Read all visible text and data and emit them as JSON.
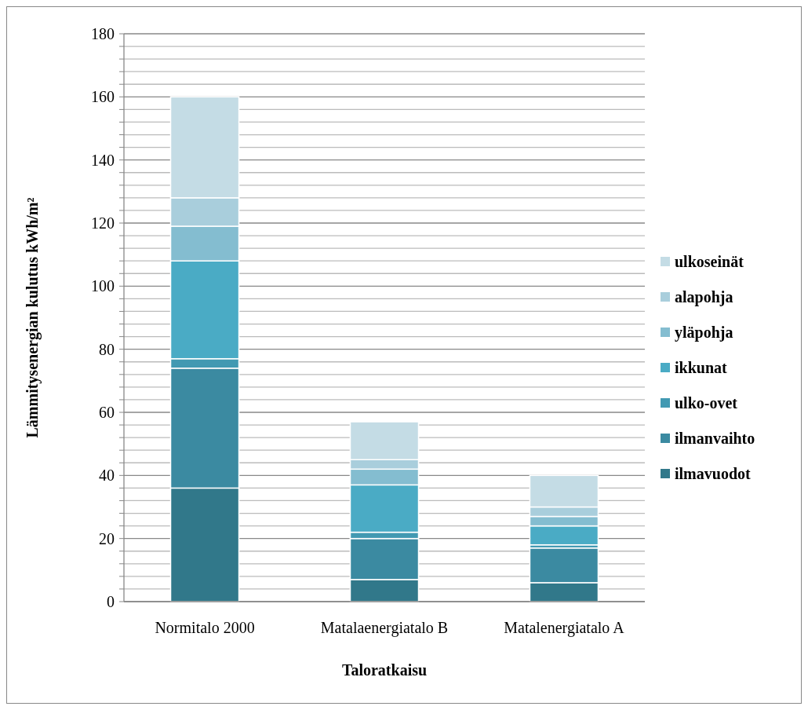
{
  "chart_data": {
    "type": "bar",
    "stacked": true,
    "xlabel": "Taloratkaisu",
    "ylabel": "Lämmitysenergian kulutus kWh/m²",
    "categories": [
      "Normitalo 2000",
      "Matalaenergiatalo B",
      "Matalenergiatalo A"
    ],
    "series": [
      {
        "name": "ilmavuodot",
        "color": "#31788a",
        "values": [
          36,
          7,
          6
        ]
      },
      {
        "name": "ilmanvaihto",
        "color": "#3b8aa1",
        "values": [
          38,
          13,
          11
        ]
      },
      {
        "name": "ulko-ovet",
        "color": "#4299b2",
        "values": [
          3,
          2,
          1
        ]
      },
      {
        "name": "ikkunat",
        "color": "#4aabc5",
        "values": [
          31,
          15,
          6
        ]
      },
      {
        "name": "yläpohja",
        "color": "#84bdd0",
        "values": [
          11,
          5,
          3
        ]
      },
      {
        "name": "alapohja",
        "color": "#a9cedc",
        "values": [
          9,
          3,
          3
        ]
      },
      {
        "name": "ulkoseinät",
        "color": "#c4dce5",
        "values": [
          32,
          12,
          10
        ]
      }
    ],
    "ylim": [
      0,
      180
    ],
    "yticks": [
      0,
      {
        "value": 4,
        "label": null
      },
      {
        "value": 8,
        "label": null
      },
      {
        "value": 12,
        "label": null
      },
      {
        "value": 16,
        "label": null
      },
      20,
      {
        "value": 24,
        "label": null
      },
      {
        "value": 28,
        "label": null
      },
      {
        "value": 32,
        "label": null
      },
      {
        "value": 36,
        "label": null
      },
      40,
      {
        "value": 44,
        "label": null
      },
      {
        "value": 48,
        "label": null
      },
      {
        "value": 52,
        "label": null
      },
      {
        "value": 56,
        "label": null
      },
      60,
      {
        "value": 64,
        "label": null
      },
      {
        "value": 68,
        "label": null
      },
      {
        "value": 72,
        "label": null
      },
      {
        "value": 76,
        "label": null
      },
      80,
      {
        "value": 84,
        "label": null
      },
      {
        "value": 88,
        "label": null
      },
      {
        "value": 92,
        "label": null
      },
      {
        "value": 96,
        "label": null
      },
      100,
      {
        "value": 104,
        "label": null
      },
      {
        "value": 108,
        "label": null
      },
      {
        "value": 112,
        "label": null
      },
      {
        "value": 116,
        "label": null
      },
      120,
      {
        "value": 124,
        "label": null
      },
      {
        "value": 128,
        "label": null
      },
      {
        "value": 132,
        "label": null
      },
      {
        "value": 136,
        "label": null
      },
      140,
      {
        "value": 144,
        "label": null
      },
      {
        "value": 148,
        "label": null
      },
      {
        "value": 152,
        "label": null
      },
      {
        "value": 156,
        "label": null
      },
      160,
      {
        "value": 164,
        "label": null
      },
      {
        "value": 168,
        "label": null
      },
      {
        "value": 172,
        "label": null
      },
      {
        "value": 176,
        "label": null
      },
      180
    ],
    "grid": "y",
    "legend": "right"
  }
}
